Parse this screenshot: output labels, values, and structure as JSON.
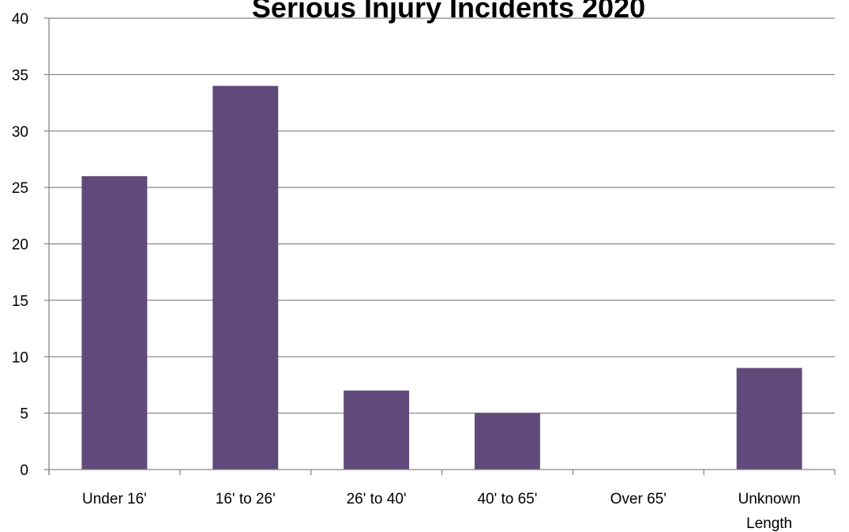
{
  "chart_data": {
    "type": "bar",
    "title": "Serious Injury Incidents 2020",
    "categories": [
      [
        "Under 16'"
      ],
      [
        "16' to 26'"
      ],
      [
        "26' to 40'"
      ],
      [
        "40' to 65'"
      ],
      [
        "Over 65'"
      ],
      [
        "Unknown",
        "Length"
      ]
    ],
    "values": [
      26,
      34,
      7,
      5,
      0,
      9
    ],
    "ylim": [
      0,
      40
    ],
    "yticks": [
      "0",
      "5",
      "10",
      "15",
      "20",
      "25",
      "30",
      "35",
      "40"
    ],
    "ytick_values": [
      0,
      5,
      10,
      15,
      20,
      25,
      30,
      35,
      40
    ],
    "grid": true,
    "legend": "none",
    "colors": {
      "bar": "#604a7b",
      "grid": "#888888",
      "axis": "#888888"
    }
  }
}
